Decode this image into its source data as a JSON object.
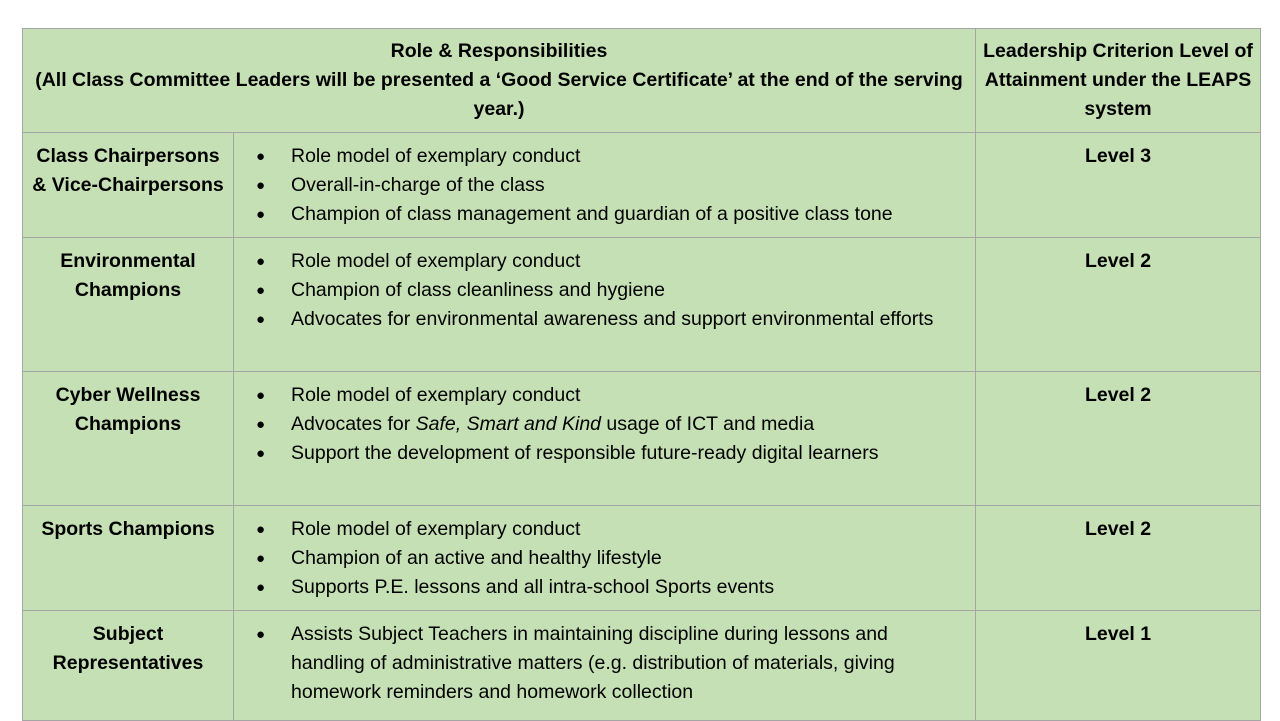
{
  "header": {
    "role_title": "Role & Responsibilities",
    "role_note": "(All Class Committee Leaders will be presented a ‘Good Service Certificate’ at the end of the serving year.)",
    "level_title": "Leadership Criterion Level of Attainment under the LEAPS system"
  },
  "rows": [
    {
      "role": "Class Chairpersons & Vice-Chairpersons",
      "level": "Level 3",
      "items": [
        "Role model of exemplary conduct",
        "Overall-in-charge of the class",
        "Champion of class management and guardian of a positive class tone"
      ]
    },
    {
      "role": "Environmental Champions",
      "level": "Level 2",
      "items": [
        "Role model of exemplary conduct",
        "Champion of class cleanliness and hygiene",
        "Advocates for environmental awareness and support environmental efforts"
      ]
    },
    {
      "role": "Cyber Wellness Champions",
      "level": "Level 2",
      "items": [
        "Role model of exemplary conduct",
        {
          "pre": "Advocates for ",
          "em": "Safe, Smart and Kind",
          "post": " usage of ICT and media"
        },
        "Support the development of responsible future-ready digital learners"
      ]
    },
    {
      "role": "Sports Champions",
      "level": "Level 2",
      "items": [
        "Role model of exemplary conduct",
        "Champion of an active and healthy lifestyle",
        "Supports P.E. lessons and all intra-school Sports events"
      ]
    },
    {
      "role": "Subject Representatives",
      "level": "Level 1",
      "items": [
        "Assists Subject Teachers in maintaining discipline during lessons and handling of administrative matters (e.g. distribution of materials, giving homework reminders and homework collection"
      ]
    }
  ],
  "bullet_glyph": "●"
}
